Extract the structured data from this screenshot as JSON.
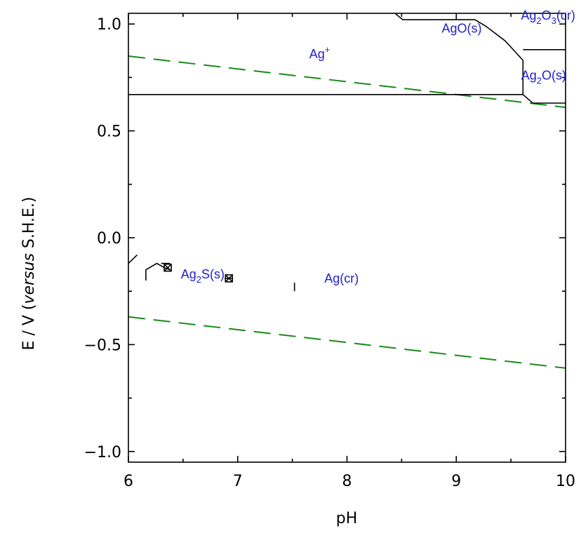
{
  "chart_data": {
    "type": "line",
    "title": "",
    "xlabel": "pH",
    "ylabel_prefix": "E / V (",
    "ylabel_italic": "versus",
    "ylabel_suffix": " S.H.E.)",
    "xlim": [
      6,
      10
    ],
    "ylim": [
      -1.05,
      1.05
    ],
    "x_ticks": [
      6,
      7,
      8,
      9,
      10
    ],
    "x_tick_labels": [
      "6",
      "7",
      "8",
      "9",
      "10"
    ],
    "y_ticks": [
      1.0,
      0.5,
      0.0,
      -0.5,
      -1.0
    ],
    "y_tick_labels": [
      "1.0",
      "0.5",
      "0.0",
      "−0.5",
      "−1.0"
    ],
    "grid": false,
    "colors": {
      "boundary": "#000000",
      "water": "#1a8a1a",
      "label": "#1f1fc8"
    },
    "water_lines": [
      {
        "x": [
          6,
          10
        ],
        "y": [
          0.85,
          0.61
        ]
      },
      {
        "x": [
          6,
          10
        ],
        "y": [
          -0.37,
          -0.61
        ]
      }
    ],
    "boundaries": [
      {
        "x": [
          6,
          9.61
        ],
        "y": [
          0.67,
          0.67
        ]
      },
      {
        "x": [
          8.44,
          8.51,
          9.17,
          9.27,
          9.45,
          9.61,
          9.61,
          9.7,
          10.0
        ],
        "y": [
          1.05,
          1.02,
          1.02,
          0.99,
          0.92,
          0.83,
          0.67,
          0.63,
          0.63
        ]
      },
      {
        "x": [
          9.61,
          10.0
        ],
        "y": [
          0.88,
          0.88
        ]
      },
      {
        "x": [
          6.0,
          6.08
        ],
        "y": [
          -0.12,
          -0.08
        ]
      },
      {
        "x": [
          6.16,
          6.16,
          6.26,
          6.33,
          6.38
        ],
        "y": [
          -0.2,
          -0.15,
          -0.12,
          -0.14,
          -0.15
        ]
      },
      {
        "x": [
          6.3,
          6.38
        ],
        "y": [
          -0.12,
          -0.12
        ]
      },
      {
        "x": [
          6.88,
          6.95
        ],
        "y": [
          -0.19,
          -0.19
        ]
      },
      {
        "x": [
          7.52,
          7.52
        ],
        "y": [
          -0.21,
          -0.25
        ]
      }
    ],
    "markers": [
      {
        "x": 6.36,
        "y": -0.14
      },
      {
        "x": 6.92,
        "y": -0.19
      }
    ],
    "regions": [
      {
        "base": "Ag",
        "sup": "+",
        "x": 7.75,
        "y": 0.86
      },
      {
        "base": "Ag",
        "sub": "2",
        "rest": "O",
        "sub2": "3",
        "rest2": "(cr)",
        "x": 9.84,
        "y": 1.04
      },
      {
        "base": "AgO(s)",
        "x": 9.05,
        "y": 0.98
      },
      {
        "base": "Ag",
        "sub": "2",
        "rest": "O(s)",
        "x": 9.8,
        "y": 0.76
      },
      {
        "base": "Ag",
        "sub": "2",
        "rest": "S(s)",
        "x": 6.68,
        "y": -0.17
      },
      {
        "base": "Ag(cr)",
        "x": 7.95,
        "y": -0.19
      }
    ]
  }
}
